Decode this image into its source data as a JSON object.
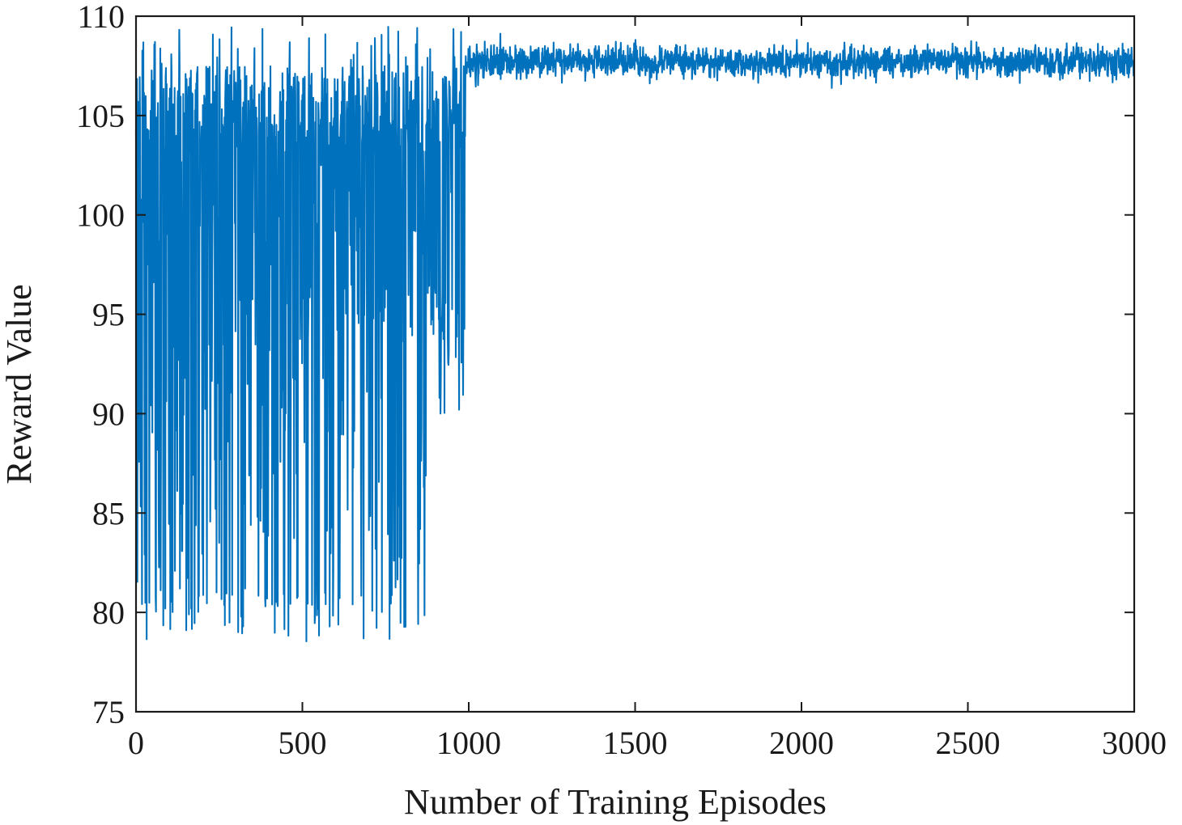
{
  "chart_data": {
    "type": "line",
    "title": "",
    "xlabel": "Number of Training Episodes",
    "ylabel": "Reward Value",
    "xlim": [
      0,
      3000
    ],
    "ylim": [
      75,
      110
    ],
    "xticks": [
      0,
      500,
      1000,
      1500,
      2000,
      2500,
      3000
    ],
    "yticks": [
      75,
      80,
      85,
      90,
      95,
      100,
      105,
      110
    ],
    "grid": false,
    "legend": "none",
    "line_color": "#0072BD",
    "series": [
      {
        "name": "",
        "phases": [
          {
            "episodes": [
              0,
              990
            ],
            "behavior": "highly oscillating exploration",
            "max": 109.5,
            "min": 77.8,
            "typical_upper": 107.5,
            "typical_lower": 92.5
          },
          {
            "episodes": [
              990,
              3000
            ],
            "behavior": "converged",
            "mean": 107.7,
            "min": 106.0,
            "max": 109.4
          }
        ]
      }
    ]
  }
}
